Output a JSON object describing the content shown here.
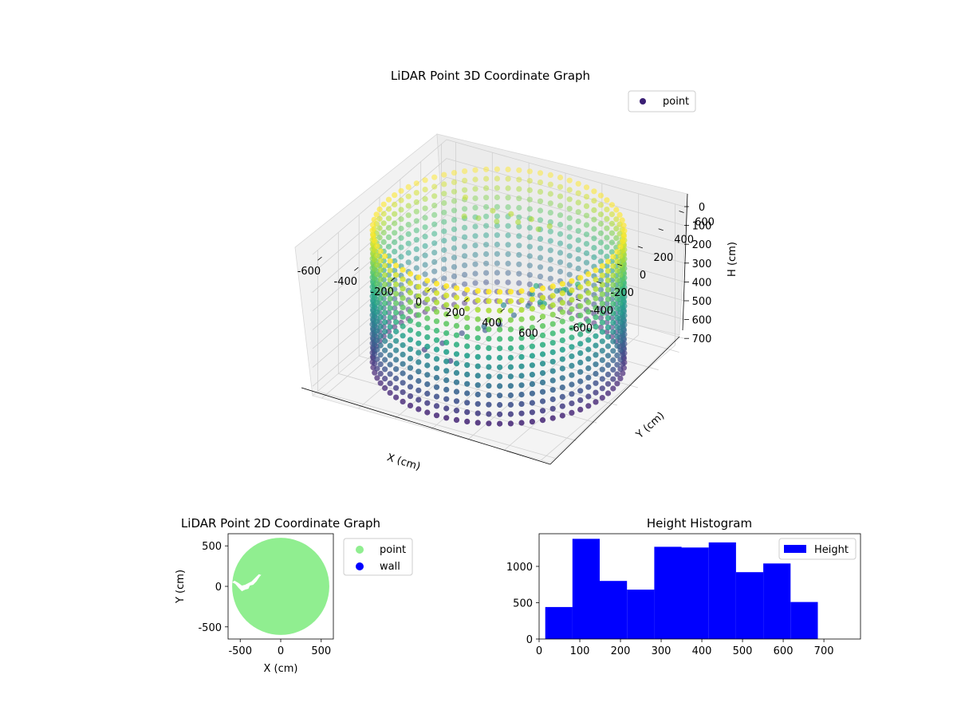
{
  "chart_data": [
    {
      "type": "scatter",
      "projection": "3d",
      "title": "LiDAR Point 3D Coordinate Graph",
      "xlabel": "X (cm)",
      "ylabel": "Y (cm)",
      "zlabel": "H (cm)",
      "xlim": [
        -650,
        650
      ],
      "ylim": [
        -650,
        650
      ],
      "zlim": [
        0,
        750
      ],
      "z_inverted": true,
      "x_ticks": [
        -600,
        -400,
        -200,
        0,
        200,
        400,
        600
      ],
      "y_ticks": [
        -600,
        -400,
        -200,
        0,
        200,
        400,
        600
      ],
      "z_ticks": [
        0,
        100,
        200,
        300,
        400,
        500,
        600,
        700
      ],
      "grid": true,
      "legend": {
        "position": "top-right",
        "entries": [
          "point"
        ]
      },
      "colormap": "viridis",
      "series": [
        {
          "name": "point",
          "color": "#3b1f74",
          "description_shape": "cylindrical wall of radius ~600, heights 0-700, plus interior cluster",
          "wall": {
            "radius": 600,
            "h_range": [
              0,
              700
            ]
          },
          "interior_points": [
            {
              "x": -320,
              "y": -150,
              "h": 650
            },
            {
              "x": -250,
              "y": -100,
              "h": 620
            },
            {
              "x": -200,
              "y": 0,
              "h": 600
            },
            {
              "x": -150,
              "y": -200,
              "h": 640
            },
            {
              "x": -100,
              "y": 50,
              "h": 580
            },
            {
              "x": -50,
              "y": 100,
              "h": 560
            },
            {
              "x": 0,
              "y": 150,
              "h": 520
            },
            {
              "x": 50,
              "y": 200,
              "h": 480
            },
            {
              "x": 100,
              "y": 250,
              "h": 450
            },
            {
              "x": 150,
              "y": 300,
              "h": 420
            },
            {
              "x": 200,
              "y": 300,
              "h": 400
            },
            {
              "x": 250,
              "y": 250,
              "h": 380
            },
            {
              "x": -300,
              "y": 200,
              "h": 100
            },
            {
              "x": -250,
              "y": 250,
              "h": 120
            },
            {
              "x": -200,
              "y": 300,
              "h": 90
            },
            {
              "x": -150,
              "y": 250,
              "h": 110
            },
            {
              "x": -100,
              "y": 300,
              "h": 80
            },
            {
              "x": -50,
              "y": 280,
              "h": 100
            },
            {
              "x": 0,
              "y": 320,
              "h": 90
            },
            {
              "x": 50,
              "y": 300,
              "h": 120
            },
            {
              "x": 100,
              "y": 320,
              "h": 100
            },
            {
              "x": -350,
              "y": 300,
              "h": 60
            },
            {
              "x": 150,
              "y": 100,
              "h": 300
            },
            {
              "x": 200,
              "y": 50,
              "h": 350
            },
            {
              "x": 250,
              "y": 0,
              "h": 320
            },
            {
              "x": 300,
              "y": 100,
              "h": 280
            },
            {
              "x": 350,
              "y": 150,
              "h": 260
            },
            {
              "x": 100,
              "y": 150,
              "h": 380
            },
            {
              "x": 0,
              "y": 50,
              "h": 420
            },
            {
              "x": -50,
              "y": -50,
              "h": 500
            }
          ]
        }
      ]
    },
    {
      "type": "scatter",
      "title": "LiDAR Point 2D Coordinate Graph",
      "xlabel": "X (cm)",
      "ylabel": "Y (cm)",
      "xlim": [
        -650,
        650
      ],
      "ylim": [
        -650,
        650
      ],
      "x_ticks": [
        -500,
        0,
        500
      ],
      "y_ticks": [
        -500,
        0,
        500
      ],
      "grid": false,
      "legend": {
        "position": "outside-right",
        "entries": [
          "point",
          "wall"
        ]
      },
      "series": [
        {
          "name": "point",
          "color": "#90ee90",
          "shape": "filled disc",
          "radius": 600
        },
        {
          "name": "wall",
          "color": "#0000ff"
        }
      ],
      "holes": [
        [
          [
            -600,
            50
          ],
          [
            -560,
            30
          ],
          [
            -520,
            -20
          ],
          [
            -480,
            -60
          ],
          [
            -440,
            -40
          ],
          [
            -400,
            -30
          ],
          [
            -380,
            10
          ],
          [
            -340,
            20
          ],
          [
            -300,
            60
          ],
          [
            -260,
            120
          ],
          [
            -240,
            140
          ],
          [
            -270,
            150
          ],
          [
            -310,
            110
          ],
          [
            -360,
            60
          ],
          [
            -400,
            40
          ],
          [
            -440,
            20
          ],
          [
            -480,
            10
          ],
          [
            -520,
            40
          ],
          [
            -570,
            70
          ]
        ]
      ]
    },
    {
      "type": "bar",
      "subtype": "histogram",
      "title": "Height Histogram",
      "xlabel": "",
      "ylabel": "",
      "xlim": [
        0,
        790
      ],
      "ylim": [
        0,
        1450
      ],
      "x_ticks": [
        0,
        100,
        200,
        300,
        400,
        500,
        600,
        700
      ],
      "y_ticks": [
        0,
        500,
        1000
      ],
      "grid": false,
      "legend": {
        "position": "top-right",
        "entries": [
          "Height"
        ]
      },
      "series": [
        {
          "name": "Height",
          "color": "#0000ff",
          "bin_edges": [
            15,
            82,
            149,
            216,
            283,
            350,
            417,
            484,
            551,
            618,
            685
          ],
          "values": [
            440,
            1380,
            800,
            680,
            1270,
            1260,
            1330,
            920,
            1040,
            510
          ]
        }
      ]
    }
  ]
}
